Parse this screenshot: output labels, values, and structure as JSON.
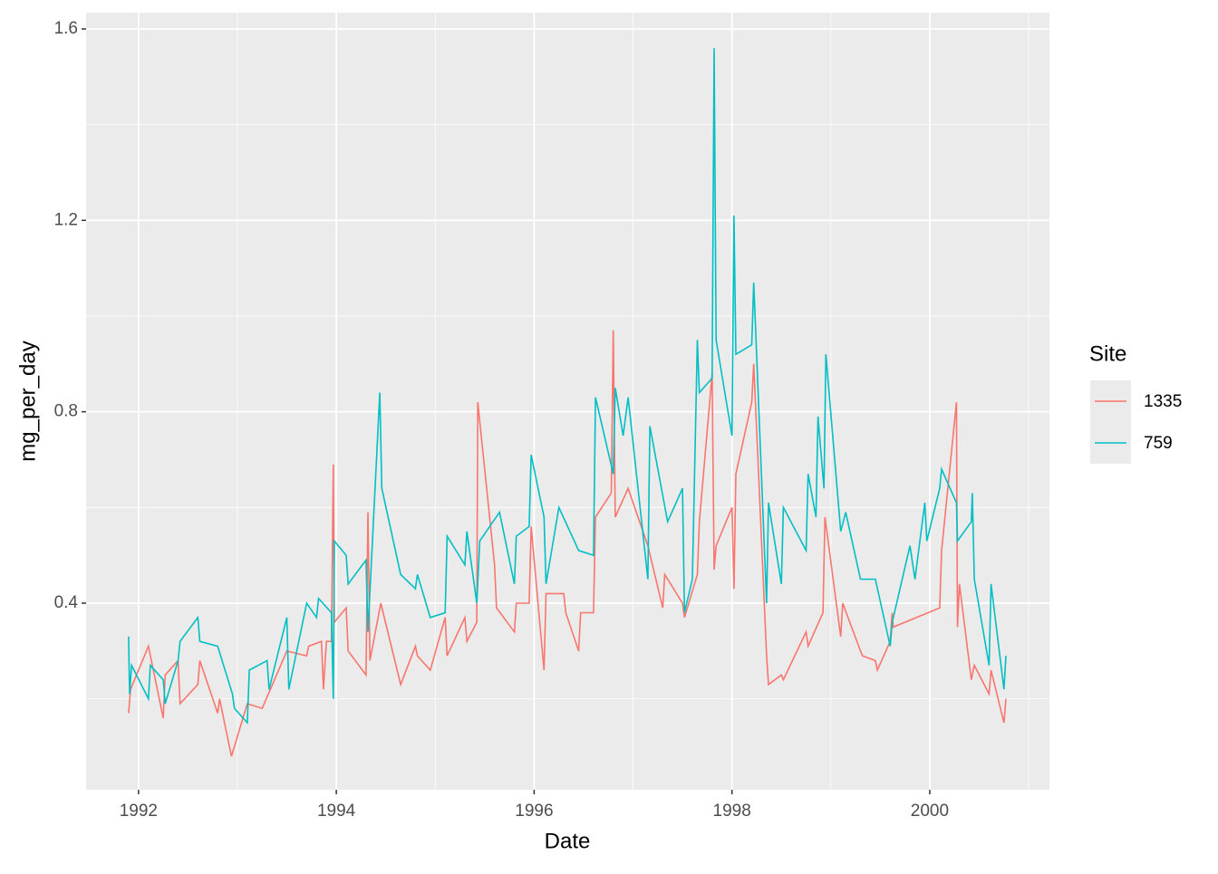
{
  "chart_data": {
    "type": "line",
    "x_label": "Date",
    "y_label": "mg_per_day",
    "legend_title": "Site",
    "legend_position": "right",
    "xlim": [
      1991.47,
      2001.21
    ],
    "xticks": [
      1992,
      1994,
      1996,
      1998,
      2000
    ],
    "x_minor_ticks": [
      1993,
      1995,
      1997,
      1999,
      2001
    ],
    "ylim": [
      0.01,
      1.634
    ],
    "yticks": [
      0.4,
      0.8,
      1.2,
      1.6
    ],
    "y_minor_ticks": [
      0.2,
      0.6,
      1.0,
      1.4
    ],
    "grid": true,
    "series": [
      {
        "name": "1335",
        "color": "#F8766D",
        "x": [
          1991.9,
          1991.92,
          1992.1,
          1992.25,
          1992.27,
          1992.4,
          1992.42,
          1992.6,
          1992.62,
          1992.8,
          1992.82,
          1992.92,
          1992.94,
          1993.1,
          1993.25,
          1993.5,
          1993.7,
          1993.72,
          1993.85,
          1993.87,
          1993.9,
          1993.95,
          1993.97,
          1993.98,
          1994.1,
          1994.12,
          1994.3,
          1994.32,
          1994.34,
          1994.45,
          1994.65,
          1994.8,
          1994.82,
          1994.95,
          1995.1,
          1995.12,
          1995.3,
          1995.32,
          1995.42,
          1995.43,
          1995.6,
          1995.62,
          1995.8,
          1995.82,
          1995.95,
          1995.97,
          1996.1,
          1996.12,
          1996.3,
          1996.32,
          1996.45,
          1996.47,
          1996.6,
          1996.62,
          1996.78,
          1996.8,
          1996.82,
          1996.95,
          1997.15,
          1997.3,
          1997.32,
          1997.5,
          1997.52,
          1997.65,
          1997.67,
          1997.8,
          1997.82,
          1997.84,
          1998.0,
          1998.02,
          1998.04,
          1998.2,
          1998.22,
          1998.35,
          1998.37,
          1998.5,
          1998.52,
          1998.75,
          1998.77,
          1998.92,
          1998.94,
          1999.1,
          1999.12,
          1999.3,
          1999.32,
          1999.45,
          1999.47,
          1999.6,
          1999.62,
          1999.63,
          2000.1,
          2000.12,
          2000.27,
          2000.28,
          2000.3,
          2000.42,
          2000.45,
          2000.6,
          2000.62,
          2000.75,
          2000.77
        ],
        "values": [
          0.17,
          0.22,
          0.31,
          0.16,
          0.25,
          0.28,
          0.19,
          0.23,
          0.28,
          0.17,
          0.2,
          0.1,
          0.08,
          0.19,
          0.18,
          0.3,
          0.29,
          0.31,
          0.32,
          0.22,
          0.32,
          0.32,
          0.69,
          0.36,
          0.39,
          0.3,
          0.25,
          0.59,
          0.28,
          0.4,
          0.23,
          0.31,
          0.29,
          0.26,
          0.37,
          0.29,
          0.37,
          0.32,
          0.36,
          0.82,
          0.48,
          0.39,
          0.34,
          0.4,
          0.4,
          0.56,
          0.26,
          0.42,
          0.42,
          0.38,
          0.3,
          0.38,
          0.38,
          0.58,
          0.63,
          0.97,
          0.58,
          0.64,
          0.52,
          0.39,
          0.46,
          0.4,
          0.37,
          0.46,
          0.57,
          0.88,
          0.47,
          0.52,
          0.6,
          0.43,
          0.67,
          0.82,
          0.9,
          0.29,
          0.23,
          0.25,
          0.24,
          0.34,
          0.31,
          0.38,
          0.58,
          0.33,
          0.4,
          0.3,
          0.29,
          0.28,
          0.26,
          0.32,
          0.38,
          0.35,
          0.39,
          0.51,
          0.82,
          0.35,
          0.44,
          0.24,
          0.27,
          0.21,
          0.26,
          0.15,
          0.2
        ]
      },
      {
        "name": "759",
        "color": "#00BFC4",
        "x": [
          1991.9,
          1991.91,
          1991.93,
          1992.1,
          1992.12,
          1992.25,
          1992.27,
          1992.4,
          1992.42,
          1992.6,
          1992.62,
          1992.8,
          1992.95,
          1992.97,
          1993.1,
          1993.12,
          1993.3,
          1993.32,
          1993.5,
          1993.52,
          1993.7,
          1993.8,
          1993.82,
          1993.95,
          1993.97,
          1993.98,
          1994.1,
          1994.12,
          1994.3,
          1994.32,
          1994.44,
          1994.46,
          1994.65,
          1994.8,
          1994.82,
          1994.95,
          1995.1,
          1995.12,
          1995.3,
          1995.32,
          1995.42,
          1995.45,
          1995.65,
          1995.8,
          1995.82,
          1995.95,
          1995.97,
          1996.1,
          1996.12,
          1996.25,
          1996.45,
          1996.6,
          1996.62,
          1996.8,
          1996.82,
          1996.9,
          1996.95,
          1997.15,
          1997.17,
          1997.35,
          1997.5,
          1997.52,
          1997.6,
          1997.65,
          1997.67,
          1997.8,
          1997.82,
          1997.84,
          1998.0,
          1998.02,
          1998.04,
          1998.2,
          1998.22,
          1998.35,
          1998.37,
          1998.5,
          1998.52,
          1998.75,
          1998.77,
          1998.85,
          1998.87,
          1998.93,
          1998.95,
          1999.1,
          1999.15,
          1999.3,
          1999.45,
          1999.6,
          1999.62,
          1999.8,
          1999.85,
          1999.95,
          1999.97,
          2000.1,
          2000.12,
          2000.27,
          2000.28,
          2000.42,
          2000.43,
          2000.45,
          2000.6,
          2000.62,
          2000.75,
          2000.77
        ],
        "values": [
          0.33,
          0.21,
          0.27,
          0.2,
          0.27,
          0.24,
          0.19,
          0.28,
          0.32,
          0.37,
          0.32,
          0.31,
          0.21,
          0.18,
          0.15,
          0.26,
          0.28,
          0.22,
          0.37,
          0.22,
          0.4,
          0.37,
          0.41,
          0.38,
          0.2,
          0.53,
          0.5,
          0.44,
          0.49,
          0.34,
          0.84,
          0.64,
          0.46,
          0.43,
          0.46,
          0.37,
          0.38,
          0.54,
          0.48,
          0.55,
          0.4,
          0.53,
          0.59,
          0.44,
          0.54,
          0.56,
          0.71,
          0.58,
          0.44,
          0.6,
          0.51,
          0.5,
          0.83,
          0.67,
          0.85,
          0.75,
          0.83,
          0.45,
          0.77,
          0.57,
          0.64,
          0.38,
          0.45,
          0.95,
          0.84,
          0.87,
          1.56,
          0.95,
          0.75,
          1.21,
          0.92,
          0.94,
          1.07,
          0.4,
          0.61,
          0.44,
          0.6,
          0.51,
          0.67,
          0.58,
          0.79,
          0.64,
          0.92,
          0.55,
          0.59,
          0.45,
          0.45,
          0.31,
          0.36,
          0.52,
          0.45,
          0.61,
          0.53,
          0.64,
          0.68,
          0.61,
          0.53,
          0.57,
          0.63,
          0.45,
          0.27,
          0.44,
          0.22,
          0.29
        ]
      }
    ]
  }
}
